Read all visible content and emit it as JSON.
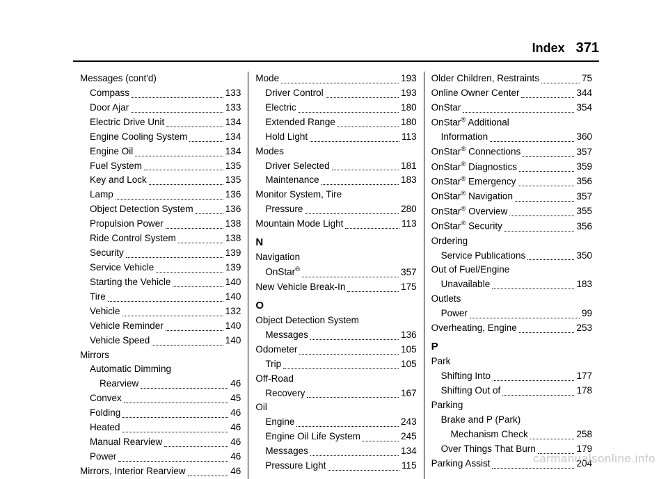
{
  "header": {
    "title": "Index",
    "page_number": "371"
  },
  "watermark": "carmanualsonline.info",
  "columns": [
    {
      "items": [
        {
          "type": "heading",
          "indent": 0,
          "text": "Messages (cont'd)"
        },
        {
          "type": "entry",
          "indent": 1,
          "label": "Compass",
          "page": "133"
        },
        {
          "type": "entry",
          "indent": 1,
          "label": "Door Ajar",
          "page": "133"
        },
        {
          "type": "entry",
          "indent": 1,
          "label": "Electric Drive Unit",
          "page": "134"
        },
        {
          "type": "entry",
          "indent": 1,
          "label": "Engine Cooling System",
          "page": "134"
        },
        {
          "type": "entry",
          "indent": 1,
          "label": "Engine Oil",
          "page": "134"
        },
        {
          "type": "entry",
          "indent": 1,
          "label": "Fuel System",
          "page": "135"
        },
        {
          "type": "entry",
          "indent": 1,
          "label": "Key and Lock",
          "page": "135"
        },
        {
          "type": "entry",
          "indent": 1,
          "label": "Lamp",
          "page": "136"
        },
        {
          "type": "entry",
          "indent": 1,
          "label": "Object Detection System",
          "page": "136"
        },
        {
          "type": "entry",
          "indent": 1,
          "label": "Propulsion Power",
          "page": "138"
        },
        {
          "type": "entry",
          "indent": 1,
          "label": "Ride Control System",
          "page": "138"
        },
        {
          "type": "entry",
          "indent": 1,
          "label": "Security",
          "page": "139"
        },
        {
          "type": "entry",
          "indent": 1,
          "label": "Service Vehicle",
          "page": "139"
        },
        {
          "type": "entry",
          "indent": 1,
          "label": "Starting the Vehicle",
          "page": "140"
        },
        {
          "type": "entry",
          "indent": 1,
          "label": "Tire",
          "page": "140"
        },
        {
          "type": "entry",
          "indent": 1,
          "label": "Vehicle",
          "page": "132"
        },
        {
          "type": "entry",
          "indent": 1,
          "label": "Vehicle Reminder",
          "page": "140"
        },
        {
          "type": "entry",
          "indent": 1,
          "label": "Vehicle Speed",
          "page": "140"
        },
        {
          "type": "heading",
          "indent": 0,
          "text": "Mirrors"
        },
        {
          "type": "heading",
          "indent": 1,
          "text": "Automatic Dimming"
        },
        {
          "type": "entry",
          "indent": 2,
          "label": "Rearview",
          "page": "46"
        },
        {
          "type": "entry",
          "indent": 1,
          "label": "Convex",
          "page": "45"
        },
        {
          "type": "entry",
          "indent": 1,
          "label": "Folding",
          "page": "46"
        },
        {
          "type": "entry",
          "indent": 1,
          "label": "Heated",
          "page": "46"
        },
        {
          "type": "entry",
          "indent": 1,
          "label": "Manual Rearview",
          "page": "46"
        },
        {
          "type": "entry",
          "indent": 1,
          "label": "Power",
          "page": "46"
        },
        {
          "type": "entry",
          "indent": 0,
          "label": "Mirrors, Interior Rearview",
          "page": "46"
        }
      ]
    },
    {
      "items": [
        {
          "type": "entry",
          "indent": 0,
          "label": "Mode",
          "page": "193"
        },
        {
          "type": "entry",
          "indent": 1,
          "label": "Driver Control",
          "page": "193"
        },
        {
          "type": "entry",
          "indent": 1,
          "label": "Electric",
          "page": "180"
        },
        {
          "type": "entry",
          "indent": 1,
          "label": "Extended Range",
          "page": "180"
        },
        {
          "type": "entry",
          "indent": 1,
          "label": "Hold Light",
          "page": "113"
        },
        {
          "type": "heading",
          "indent": 0,
          "text": "Modes"
        },
        {
          "type": "entry",
          "indent": 1,
          "label": "Driver Selected",
          "page": "181"
        },
        {
          "type": "entry",
          "indent": 1,
          "label": "Maintenance",
          "page": "183"
        },
        {
          "type": "heading",
          "indent": 0,
          "text": "Monitor System, Tire"
        },
        {
          "type": "entry",
          "indent": 1,
          "label": "Pressure",
          "page": "280"
        },
        {
          "type": "entry",
          "indent": 0,
          "label": "Mountain Mode Light",
          "page": "113"
        },
        {
          "type": "letter",
          "text": "N"
        },
        {
          "type": "heading",
          "indent": 0,
          "text": "Navigation"
        },
        {
          "type": "entry",
          "indent": 1,
          "label": "OnStar<sup>®</sup>",
          "page": "357"
        },
        {
          "type": "entry",
          "indent": 0,
          "label": "New Vehicle Break-In",
          "page": "175"
        },
        {
          "type": "letter",
          "text": "O"
        },
        {
          "type": "heading",
          "indent": 0,
          "text": "Object Detection System"
        },
        {
          "type": "entry",
          "indent": 1,
          "label": "Messages",
          "page": "136"
        },
        {
          "type": "entry",
          "indent": 0,
          "label": "Odometer",
          "page": "105"
        },
        {
          "type": "entry",
          "indent": 1,
          "label": "Trip",
          "page": "105"
        },
        {
          "type": "heading",
          "indent": 0,
          "text": "Off-Road"
        },
        {
          "type": "entry",
          "indent": 1,
          "label": "Recovery",
          "page": "167"
        },
        {
          "type": "heading",
          "indent": 0,
          "text": "Oil"
        },
        {
          "type": "entry",
          "indent": 1,
          "label": "Engine",
          "page": "243"
        },
        {
          "type": "entry",
          "indent": 1,
          "label": "Engine Oil Life System",
          "page": "245"
        },
        {
          "type": "entry",
          "indent": 1,
          "label": "Messages",
          "page": "134"
        },
        {
          "type": "entry",
          "indent": 1,
          "label": "Pressure Light",
          "page": "115"
        }
      ]
    },
    {
      "items": [
        {
          "type": "entry",
          "indent": 0,
          "label": "Older Children, Restraints",
          "page": "75"
        },
        {
          "type": "entry",
          "indent": 0,
          "label": "Online Owner Center",
          "page": "344"
        },
        {
          "type": "entry",
          "indent": 0,
          "label": "OnStar",
          "page": "354"
        },
        {
          "type": "heading",
          "indent": 0,
          "text": "OnStar<sup>®</sup> Additional"
        },
        {
          "type": "entry",
          "indent": 1,
          "label": "Information",
          "page": "360"
        },
        {
          "type": "entry",
          "indent": 0,
          "label": "OnStar<sup>®</sup> Connections",
          "page": "357"
        },
        {
          "type": "entry",
          "indent": 0,
          "label": "OnStar<sup>®</sup> Diagnostics",
          "page": "359"
        },
        {
          "type": "entry",
          "indent": 0,
          "label": "OnStar<sup>®</sup> Emergency",
          "page": "356"
        },
        {
          "type": "entry",
          "indent": 0,
          "label": "OnStar<sup>®</sup> Navigation",
          "page": "357"
        },
        {
          "type": "entry",
          "indent": 0,
          "label": "OnStar<sup>®</sup> Overview",
          "page": "355"
        },
        {
          "type": "entry",
          "indent": 0,
          "label": "OnStar<sup>®</sup> Security",
          "page": "356"
        },
        {
          "type": "heading",
          "indent": 0,
          "text": "Ordering"
        },
        {
          "type": "entry",
          "indent": 1,
          "label": "Service Publications",
          "page": "350"
        },
        {
          "type": "heading",
          "indent": 0,
          "text": "Out of Fuel/Engine"
        },
        {
          "type": "entry",
          "indent": 1,
          "label": "Unavailable",
          "page": "183"
        },
        {
          "type": "heading",
          "indent": 0,
          "text": "Outlets"
        },
        {
          "type": "entry",
          "indent": 1,
          "label": "Power",
          "page": "99"
        },
        {
          "type": "entry",
          "indent": 0,
          "label": "Overheating, Engine",
          "page": "253"
        },
        {
          "type": "letter",
          "text": "P"
        },
        {
          "type": "heading",
          "indent": 0,
          "text": "Park"
        },
        {
          "type": "entry",
          "indent": 1,
          "label": "Shifting Into",
          "page": "177"
        },
        {
          "type": "entry",
          "indent": 1,
          "label": "Shifting Out of",
          "page": "178"
        },
        {
          "type": "heading",
          "indent": 0,
          "text": "Parking"
        },
        {
          "type": "heading",
          "indent": 1,
          "text": "Brake and P (Park)"
        },
        {
          "type": "entry",
          "indent": 2,
          "label": "Mechanism Check",
          "page": "258"
        },
        {
          "type": "entry",
          "indent": 1,
          "label": "Over Things That Burn",
          "page": "179"
        },
        {
          "type": "entry",
          "indent": 0,
          "label": "Parking Assist",
          "page": "204"
        }
      ]
    }
  ]
}
